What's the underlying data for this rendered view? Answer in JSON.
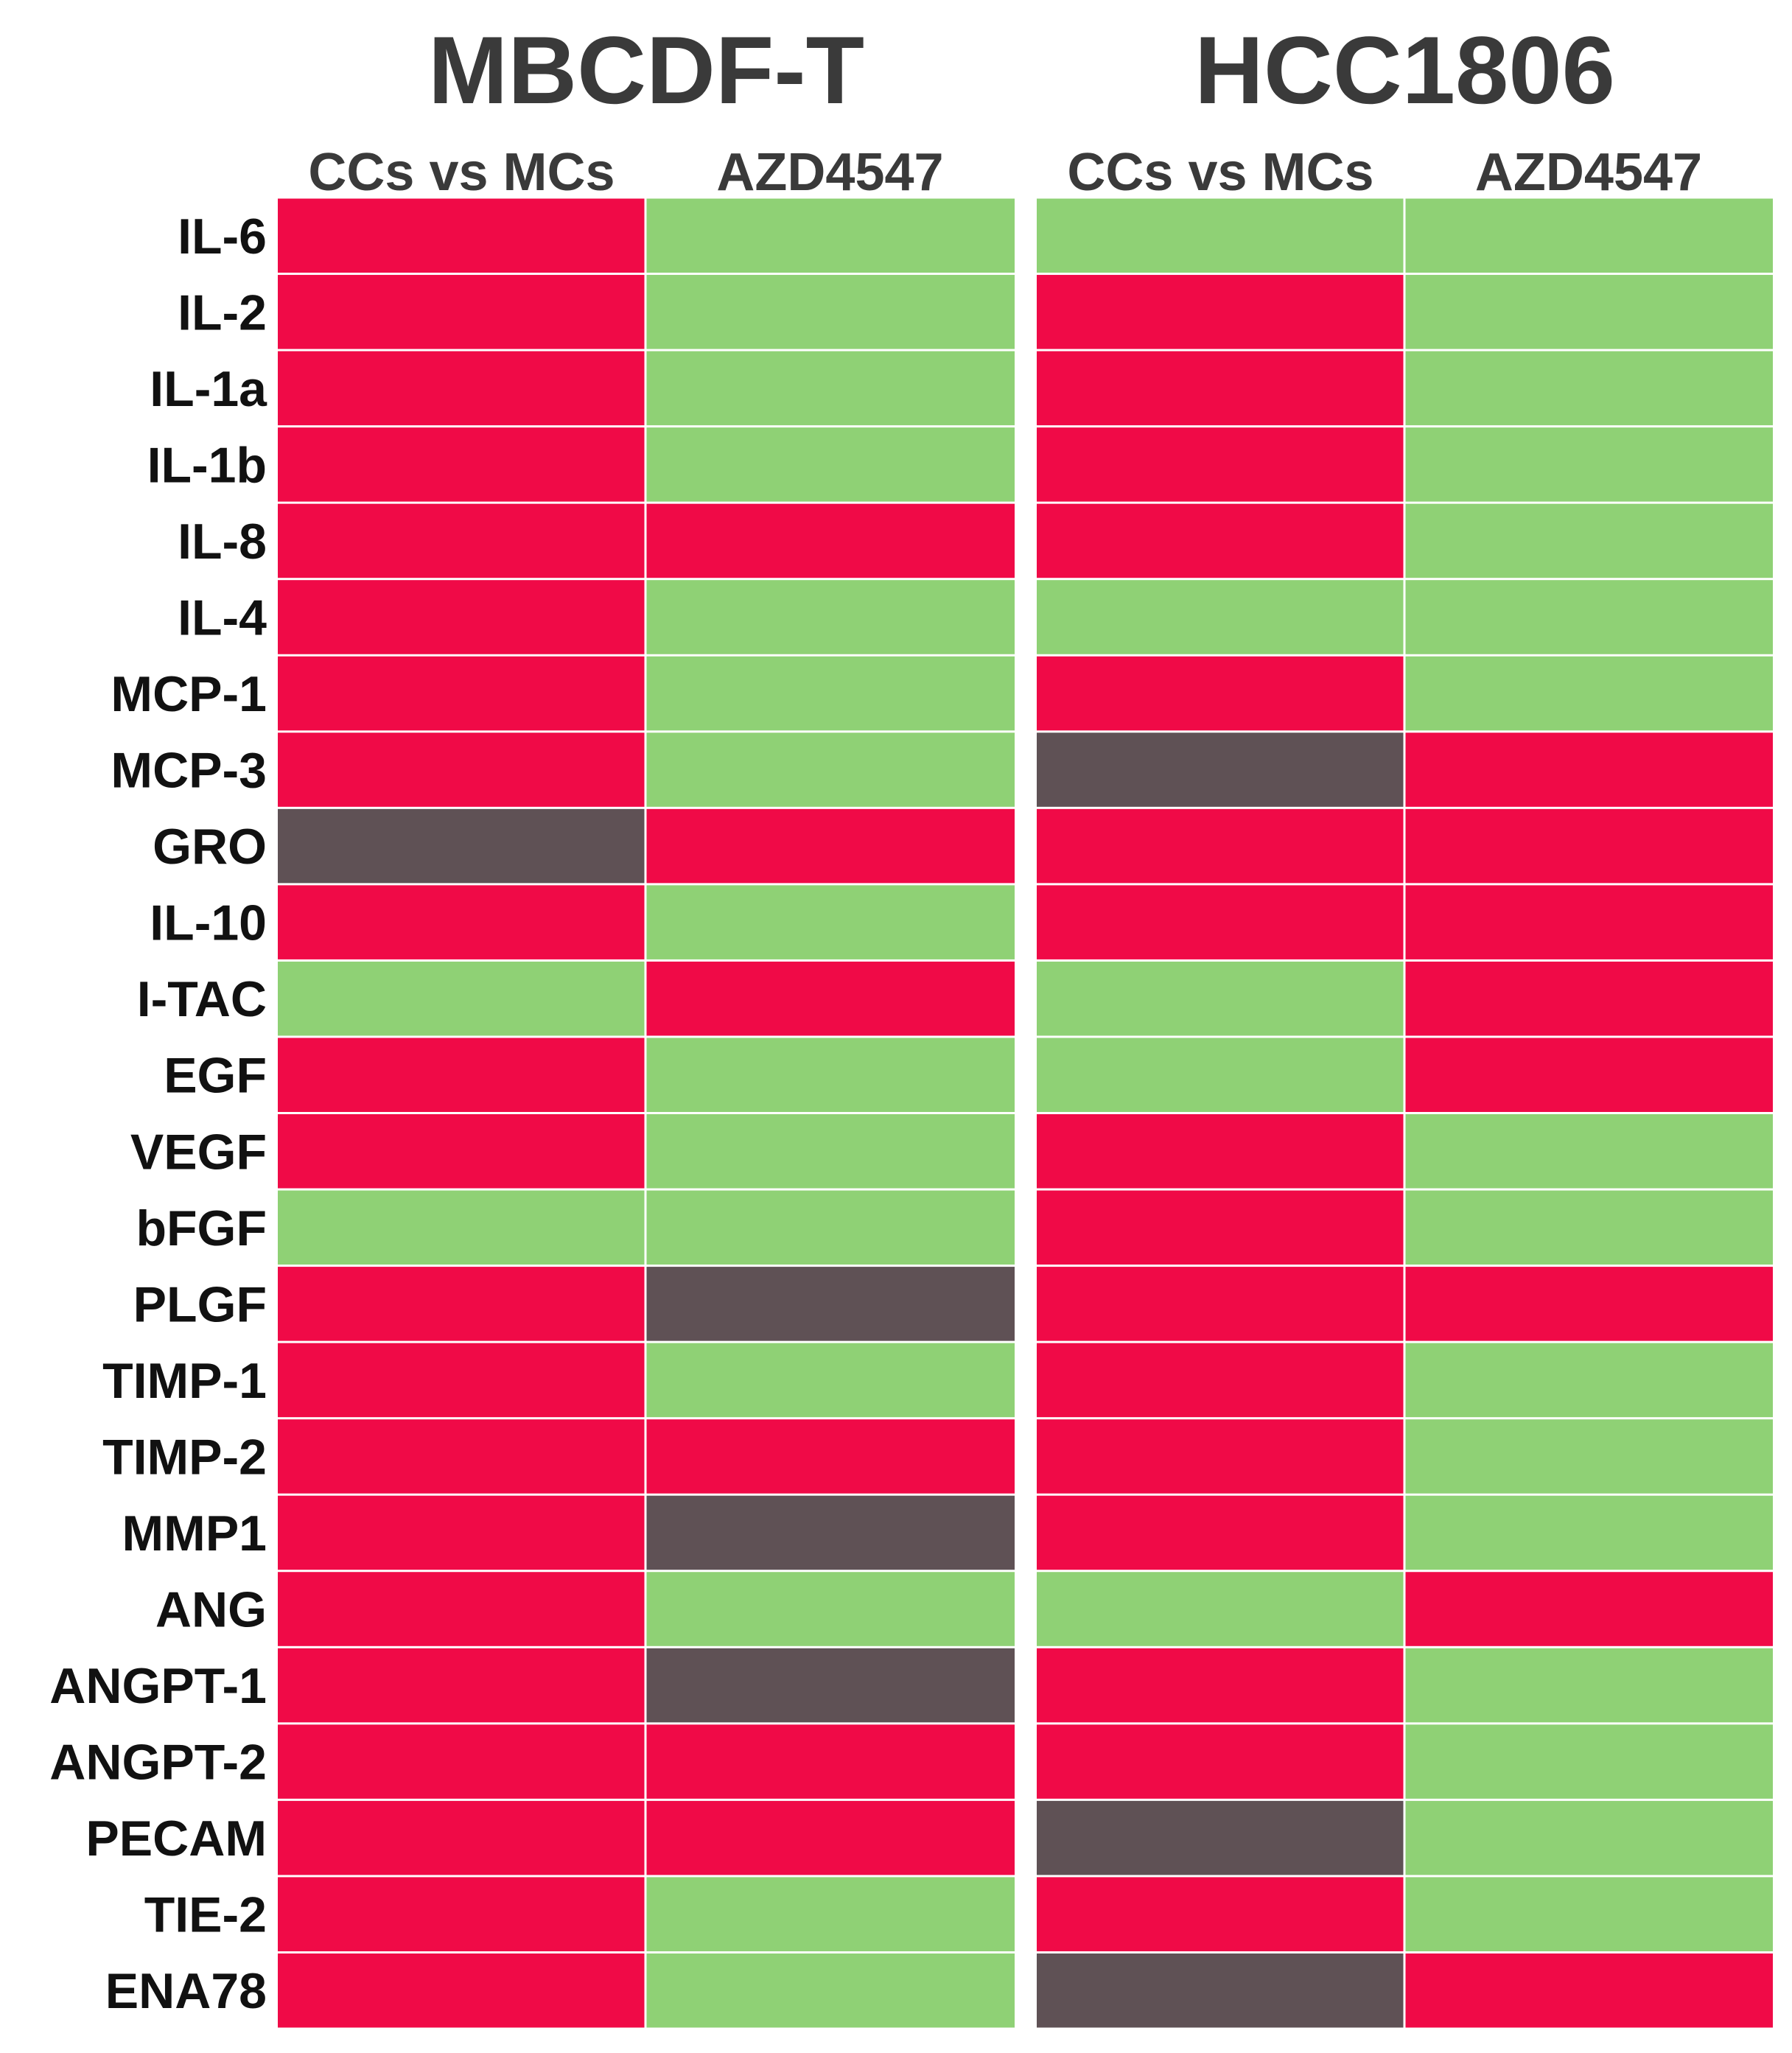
{
  "chart_data": {
    "type": "heatmap",
    "groups": [
      {
        "title": "MBCDF-T",
        "columns": [
          "CCs vs MCs",
          "AZD4547"
        ]
      },
      {
        "title": "HCC1806",
        "columns": [
          "CCs vs MCs",
          "AZD4547"
        ]
      }
    ],
    "rows": [
      "IL-6",
      "IL-2",
      "IL-1a",
      "IL-1b",
      "IL-8",
      "IL-4",
      "MCP-1",
      "MCP-3",
      "GRO",
      "IL-10",
      "I-TAC",
      "EGF",
      "VEGF",
      "bFGF",
      "PLGF",
      "TIMP-1",
      "TIMP-2",
      "MMP1",
      "ANG",
      "ANGPT-1",
      "ANGPT-2",
      "PECAM",
      "TIE-2",
      "ENA78"
    ],
    "cell_states": [
      "red",
      "green",
      "gray"
    ],
    "colors": {
      "red": "#F00A47",
      "green": "#8FD175",
      "gray": "#5F5155"
    },
    "values": [
      [
        "red",
        "green",
        "green",
        "green"
      ],
      [
        "red",
        "green",
        "red",
        "green"
      ],
      [
        "red",
        "green",
        "red",
        "green"
      ],
      [
        "red",
        "green",
        "red",
        "green"
      ],
      [
        "red",
        "red",
        "red",
        "green"
      ],
      [
        "red",
        "green",
        "green",
        "green"
      ],
      [
        "red",
        "green",
        "red",
        "green"
      ],
      [
        "red",
        "green",
        "gray",
        "red"
      ],
      [
        "gray",
        "red",
        "red",
        "red"
      ],
      [
        "red",
        "green",
        "red",
        "red"
      ],
      [
        "green",
        "red",
        "green",
        "red"
      ],
      [
        "red",
        "green",
        "green",
        "red"
      ],
      [
        "red",
        "green",
        "red",
        "green"
      ],
      [
        "green",
        "green",
        "red",
        "green"
      ],
      [
        "red",
        "gray",
        "red",
        "red"
      ],
      [
        "red",
        "green",
        "red",
        "green"
      ],
      [
        "red",
        "red",
        "red",
        "green"
      ],
      [
        "red",
        "gray",
        "red",
        "green"
      ],
      [
        "red",
        "green",
        "green",
        "red"
      ],
      [
        "red",
        "gray",
        "red",
        "green"
      ],
      [
        "red",
        "red",
        "red",
        "green"
      ],
      [
        "red",
        "red",
        "gray",
        "green"
      ],
      [
        "red",
        "green",
        "red",
        "green"
      ],
      [
        "red",
        "green",
        "gray",
        "red"
      ]
    ]
  }
}
